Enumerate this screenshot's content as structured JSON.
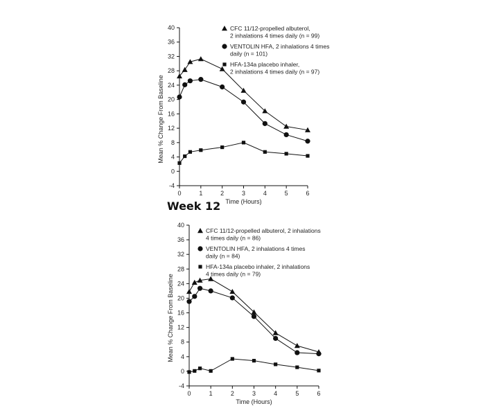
{
  "heading": "Week 12",
  "chart_data": [
    {
      "type": "line",
      "title": "",
      "xlabel": "Time (Hours)",
      "ylabel": "Mean % Change From Baseline",
      "xlim": [
        0,
        6
      ],
      "ylim": [
        -4,
        40
      ],
      "xticks": [
        0,
        1,
        2,
        3,
        4,
        5,
        6
      ],
      "yticks": [
        -4,
        0,
        4,
        8,
        12,
        16,
        20,
        24,
        28,
        32,
        36,
        40
      ],
      "grid": false,
      "legend_position": "top-right",
      "series": [
        {
          "name": "CFC 11/12-propelled albuterol, 2 inhalations 4 times daily (n = 99)",
          "legend_lines": [
            "CFC 11/12-propelled albuterol,",
            "2 inhalations 4 times daily (n = 99)"
          ],
          "marker": "triangle",
          "x": [
            0,
            0.25,
            0.5,
            1,
            2,
            3,
            4,
            5,
            6
          ],
          "y": [
            26.5,
            28.3,
            30.5,
            31.3,
            28.5,
            22.5,
            16.8,
            12.5,
            11.5
          ]
        },
        {
          "name": "VENTOLIN HFA, 2 inhalations 4 times daily (n = 101)",
          "legend_lines": [
            "VENTOLIN HFA, 2 inhalations 4 times",
            "daily (n = 101)"
          ],
          "marker": "circle",
          "x": [
            0,
            0.25,
            0.5,
            1,
            2,
            3,
            4,
            5,
            6
          ],
          "y": [
            20.7,
            24.1,
            25.2,
            25.6,
            23.5,
            19.3,
            13.3,
            10.2,
            8.4
          ]
        },
        {
          "name": "HFA-134a placebo inhaler, 2 inhalations 4 times daily (n = 97)",
          "legend_lines": [
            "HFA-134a placebo inhaler,",
            "2 inhalations 4 times daily (n = 97)"
          ],
          "marker": "square",
          "x": [
            0,
            0.25,
            0.5,
            1,
            2,
            3,
            4,
            5,
            6
          ],
          "y": [
            2.3,
            4.2,
            5.4,
            5.9,
            6.7,
            8.0,
            5.4,
            4.9,
            4.3
          ]
        }
      ]
    },
    {
      "type": "line",
      "title": "",
      "xlabel": "Time (Hours)",
      "ylabel": "Mean % Change From Baseline",
      "xlim": [
        0,
        6
      ],
      "ylim": [
        -4,
        40
      ],
      "xticks": [
        0,
        1,
        2,
        3,
        4,
        5,
        6
      ],
      "yticks": [
        -4,
        0,
        4,
        8,
        12,
        16,
        20,
        24,
        28,
        32,
        36,
        40
      ],
      "grid": false,
      "legend_position": "top-right",
      "series": [
        {
          "name": "CFC 11/12-propelled albuterol, 2 inhalations 4 times daily (n = 86)",
          "legend_lines": [
            "CFC 11/12-propelled albuterol, 2 inhalations",
            "4 times daily (n = 86)"
          ],
          "marker": "triangle",
          "x": [
            0,
            0.25,
            0.5,
            1,
            2,
            3,
            4,
            5,
            6
          ],
          "y": [
            21.8,
            24.3,
            24.9,
            25.3,
            21.8,
            16.2,
            10.5,
            7.0,
            5.3
          ]
        },
        {
          "name": "VENTOLIN HFA, 2 inhalations 4 times daily (n = 84)",
          "legend_lines": [
            "VENTOLIN HFA, 2 inhalations 4 times",
            "daily (n = 84)"
          ],
          "marker": "circle",
          "x": [
            0,
            0.25,
            0.5,
            1,
            2,
            3,
            4,
            5,
            6
          ],
          "y": [
            19.1,
            20.5,
            22.7,
            22.0,
            20.1,
            15.0,
            9.0,
            5.1,
            4.8
          ]
        },
        {
          "name": "HFA-134a placebo inhaler, 2 inhalations 4 times daily (n = 79)",
          "legend_lines": [
            "HFA-134a placebo inhaler, 2 inhalations",
            "4 times daily (n = 79)"
          ],
          "marker": "square",
          "x": [
            0,
            0.25,
            0.5,
            1,
            2,
            3,
            4,
            5,
            6
          ],
          "y": [
            -0.2,
            0.1,
            0.8,
            0.1,
            3.4,
            2.9,
            1.9,
            1.1,
            0.2
          ]
        }
      ]
    }
  ]
}
